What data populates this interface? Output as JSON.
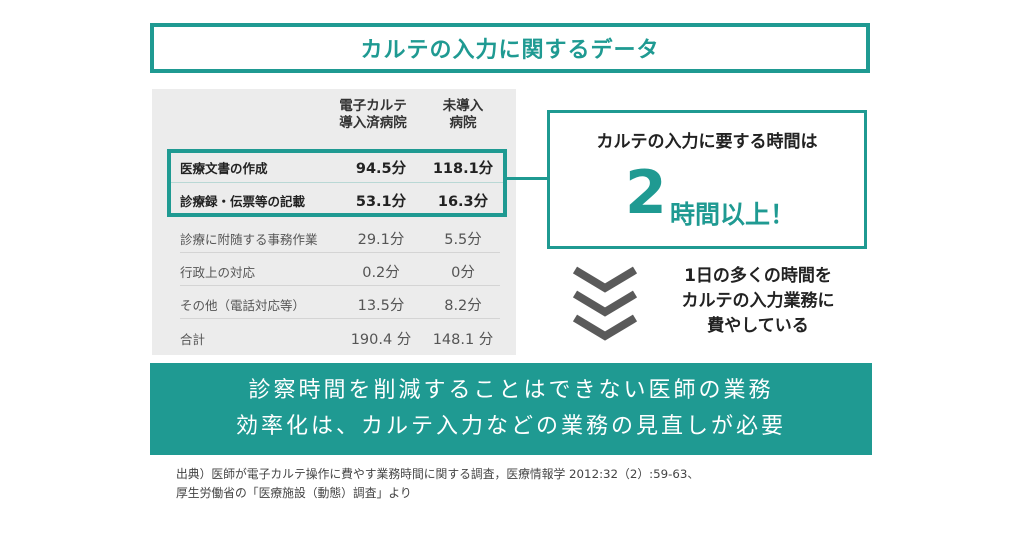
{
  "title": "カルテの入力に関するデータ",
  "table": {
    "col1_header": [
      "電子カルテ",
      "導入済病院"
    ],
    "col2_header": [
      "未導入",
      "病院"
    ],
    "rows": [
      {
        "label": "医療文書の作成",
        "v1": "94.5分",
        "v2": "118.1分"
      },
      {
        "label": "診療録・伝票等の記載",
        "v1": "53.1分",
        "v2": "16.3分"
      },
      {
        "label": "診療に附随する事務作業",
        "v1": "29.1分",
        "v2": "5.5分"
      },
      {
        "label": "行政上の対応",
        "v1": "0.2分",
        "v2": "0分"
      },
      {
        "label": "その他（電話対応等）",
        "v1": "13.5分",
        "v2": "8.2分"
      },
      {
        "label": "合計",
        "v1": "190.4 分",
        "v2": "148.1 分"
      }
    ]
  },
  "callout": {
    "line1": "カルテの入力に要する時間は",
    "big_number": "2",
    "big_suffix": "時間以上！"
  },
  "note": [
    "1日の多くの時間を",
    "カルテの入力業務に",
    "費やしている"
  ],
  "banner": [
    "診察時間を削減することはできない医師の業務",
    "効率化は、カルテ入力などの業務の見直しが必要"
  ],
  "source": [
    "出典）医師が電子カルテ操作に費やす業務時間に関する調査，医療情報学 2012:32（2）:59-63、",
    "厚生労働省の「医療施設（動態）調査」より"
  ],
  "colors": {
    "accent": "#1f9a92",
    "table_bg": "#ececec"
  }
}
